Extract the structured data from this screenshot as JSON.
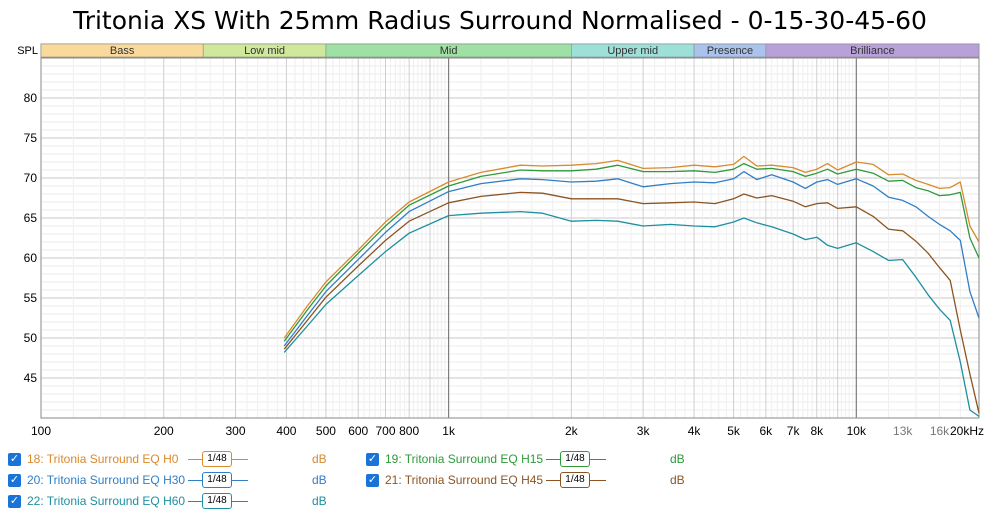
{
  "chart_data": {
    "type": "line",
    "title": "Tritonia XS With 25mm Radius Surround Normalised - 0-15-30-45-60",
    "ylabel": "SPL",
    "xunit": "kHz",
    "xscale": "log",
    "xlim": [
      100,
      20000
    ],
    "ylim": [
      40,
      85
    ],
    "grid": true,
    "x_ticks": [
      100,
      200,
      300,
      400,
      500,
      600,
      700,
      800,
      1000,
      2000,
      3000,
      4000,
      5000,
      6000,
      7000,
      8000,
      10000,
      13000,
      16000,
      20000
    ],
    "x_tick_labels": [
      "100",
      "200",
      "300",
      "400",
      "500",
      "600",
      "700",
      "800",
      "1k",
      "2k",
      "3k",
      "4k",
      "5k",
      "6k",
      "7k",
      "8k",
      "10k",
      "13k",
      "16k",
      "20kHz"
    ],
    "y_ticks": [
      45,
      50,
      55,
      60,
      65,
      70,
      75,
      80
    ],
    "y_tick_labels": [
      "45",
      "50",
      "55",
      "60",
      "65",
      "70",
      "75",
      "80"
    ],
    "bands": [
      {
        "label": "Bass",
        "from": 100,
        "to": 250,
        "color": "#f9da9a"
      },
      {
        "label": "Low mid",
        "from": 250,
        "to": 500,
        "color": "#cfe89c"
      },
      {
        "label": "Mid",
        "from": 500,
        "to": 2000,
        "color": "#9fe0a4"
      },
      {
        "label": "Upper mid",
        "from": 2000,
        "to": 4000,
        "color": "#9ddfd9"
      },
      {
        "label": "Presence",
        "from": 4000,
        "to": 6000,
        "color": "#a9c3ec"
      },
      {
        "label": "Brilliance",
        "from": 6000,
        "to": 20000,
        "color": "#b8a0d9"
      }
    ],
    "series": [
      {
        "name": "18: Tritonia Surround EQ H0",
        "color": "#d98a2e",
        "x": [
          395,
          450,
          500,
          600,
          700,
          800,
          1000,
          1200,
          1500,
          1700,
          2000,
          2300,
          2600,
          3000,
          3500,
          4000,
          4500,
          5000,
          5300,
          5700,
          6200,
          7000,
          7500,
          8000,
          8500,
          9000,
          10000,
          11000,
          12000,
          13000,
          14000,
          15000,
          16000,
          17000,
          18000,
          19000,
          20000
        ],
        "y": [
          50,
          54,
          57,
          61,
          64.5,
          67,
          69.5,
          70.7,
          71.6,
          71.5,
          71.6,
          71.8,
          72.2,
          71.2,
          71.3,
          71.6,
          71.4,
          71.7,
          72.7,
          71.5,
          71.6,
          71.3,
          70.7,
          71.1,
          71.8,
          71.0,
          72.0,
          71.7,
          70.4,
          70.5,
          69.7,
          69.2,
          68.7,
          68.8,
          69.5,
          64.0,
          62.0
        ]
      },
      {
        "name": "19: Tritonia Surround EQ H15",
        "color": "#2e9a3a",
        "x": [
          395,
          450,
          500,
          600,
          700,
          800,
          1000,
          1200,
          1500,
          1700,
          2000,
          2300,
          2600,
          3000,
          3500,
          4000,
          4500,
          5000,
          5300,
          5700,
          6200,
          7000,
          7500,
          8000,
          8500,
          9000,
          10000,
          11000,
          12000,
          13000,
          14000,
          15000,
          16000,
          17000,
          18000,
          19000,
          20000
        ],
        "y": [
          49.6,
          53.5,
          56.5,
          60.6,
          64,
          66.6,
          69,
          70.2,
          71,
          70.9,
          70.9,
          71.1,
          71.6,
          70.8,
          70.8,
          70.9,
          70.7,
          71.1,
          71.8,
          71.1,
          71.2,
          70.8,
          70.2,
          70.6,
          71.1,
          70.5,
          71.1,
          70.6,
          69.6,
          69.7,
          68.8,
          68.4,
          67.8,
          67.9,
          68.2,
          62.5,
          60.0
        ]
      },
      {
        "name": "20: Tritonia Surround EQ H30",
        "color": "#2f7fc7",
        "x": [
          395,
          450,
          500,
          600,
          700,
          800,
          1000,
          1200,
          1500,
          1700,
          2000,
          2300,
          2600,
          3000,
          3500,
          4000,
          4500,
          5000,
          5300,
          5700,
          6200,
          7000,
          7500,
          8000,
          8500,
          9000,
          10000,
          11000,
          12000,
          13000,
          14000,
          15000,
          16000,
          17000,
          18000,
          19000,
          20000
        ],
        "y": [
          49,
          52.8,
          55.8,
          59.8,
          63.2,
          65.8,
          68.3,
          69.3,
          69.9,
          69.8,
          69.5,
          69.6,
          69.9,
          68.9,
          69.3,
          69.5,
          69.4,
          69.9,
          70.8,
          69.8,
          70.4,
          69.5,
          68.7,
          69.5,
          69.8,
          69.2,
          69.9,
          69.0,
          67.6,
          67.2,
          66.4,
          65.2,
          64.2,
          63.4,
          62.2,
          55.8,
          52.5
        ]
      },
      {
        "name": "21: Tritonia Surround EQ H45",
        "color": "#8b5523",
        "x": [
          395,
          450,
          500,
          600,
          700,
          800,
          1000,
          1200,
          1500,
          1700,
          2000,
          2300,
          2600,
          3000,
          3500,
          4000,
          4500,
          5000,
          5300,
          5700,
          6200,
          7000,
          7500,
          8000,
          8500,
          9000,
          10000,
          11000,
          12000,
          13000,
          14000,
          15000,
          16000,
          17000,
          18000,
          19000,
          20000
        ],
        "y": [
          48.6,
          52.2,
          55.1,
          59,
          62.2,
          64.6,
          66.9,
          67.7,
          68.2,
          68.1,
          67.4,
          67.4,
          67.4,
          66.8,
          66.9,
          67.0,
          66.8,
          67.4,
          68.0,
          67.5,
          67.8,
          67.1,
          66.4,
          66.8,
          66.9,
          66.2,
          66.4,
          65.2,
          63.6,
          63.4,
          62.1,
          60.6,
          58.8,
          57.2,
          51.0,
          45.5,
          40.6
        ]
      },
      {
        "name": "22: Tritonia Surround EQ H60",
        "color": "#1e8fa0",
        "x": [
          395,
          450,
          500,
          600,
          700,
          800,
          1000,
          1200,
          1500,
          1700,
          2000,
          2300,
          2600,
          3000,
          3500,
          4000,
          4500,
          5000,
          5300,
          5700,
          6200,
          7000,
          7500,
          8000,
          8500,
          9000,
          10000,
          11000,
          12000,
          13000,
          14000,
          15000,
          16000,
          17000,
          18000,
          19000,
          20000
        ],
        "y": [
          48.2,
          51.5,
          54.2,
          57.8,
          60.8,
          63.1,
          65.3,
          65.6,
          65.8,
          65.6,
          64.6,
          64.7,
          64.6,
          64.0,
          64.2,
          64.0,
          63.9,
          64.5,
          65.0,
          64.4,
          63.9,
          63.0,
          62.3,
          62.6,
          61.6,
          61.2,
          61.9,
          60.8,
          59.7,
          59.8,
          57.6,
          55.4,
          53.6,
          52.2,
          47.0,
          41.0,
          40.2
        ]
      }
    ]
  },
  "legend": {
    "items": [
      {
        "label": "18: Tritonia Surround EQ H0",
        "smoothing": "1/48",
        "unit": "dB",
        "color": "#d98a2e"
      },
      {
        "label": "19: Tritonia Surround EQ H15",
        "smoothing": "1/48",
        "unit": "dB",
        "color": "#2e9a3a"
      },
      {
        "label": "20: Tritonia Surround EQ H30",
        "smoothing": "1/48",
        "unit": "dB",
        "color": "#2f7fc7"
      },
      {
        "label": "21: Tritonia Surround EQ H45",
        "smoothing": "1/48",
        "unit": "dB",
        "color": "#8b5523"
      },
      {
        "label": "22: Tritonia Surround EQ H60",
        "smoothing": "1/48",
        "unit": "dB",
        "color": "#1e8fa0"
      }
    ]
  }
}
